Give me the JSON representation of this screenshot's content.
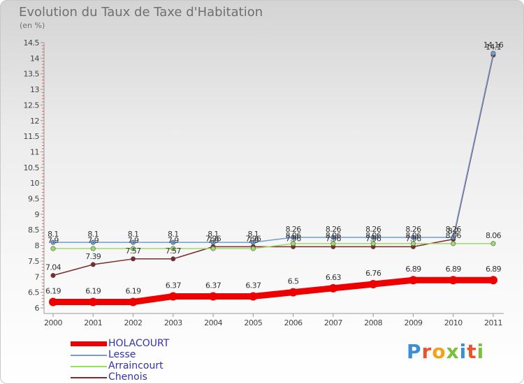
{
  "title": "Evolution du Taux de Taxe d'Habitation",
  "subtitle": "(en %)",
  "logo": {
    "text": "Proxiti",
    "colors": [
      "#3b8fd6",
      "#e8552d",
      "#f2a21a",
      "#7cbf3a",
      "#3b8fd6",
      "#e8552d",
      "#7cbf3a"
    ]
  },
  "chart_data": {
    "type": "line",
    "x": [
      2000,
      2001,
      2002,
      2003,
      2004,
      2005,
      2006,
      2007,
      2008,
      2009,
      2010,
      2011
    ],
    "ylim": [
      6,
      14.5
    ],
    "yticks": [
      "6",
      "6.5",
      "7",
      "7.5",
      "8",
      "8.5",
      "9",
      "9.5",
      "10",
      "10.5",
      "11",
      "11.5",
      "12",
      "12.5",
      "13",
      "13.5",
      "14",
      "14.5"
    ],
    "series": [
      {
        "name": "HOLACOURT",
        "color": "#ee0000",
        "values": [
          6.19,
          6.19,
          6.19,
          6.37,
          6.37,
          6.37,
          6.5,
          6.63,
          6.76,
          6.89,
          6.89,
          6.89
        ],
        "labels": [
          "6.19",
          "6.19",
          "6.19",
          "6.37",
          "6.37",
          "6.37",
          "6.5",
          "6.63",
          "6.76",
          "6.89",
          "6.89",
          "6.89"
        ]
      },
      {
        "name": "Lesse",
        "color": "#6f9ed4",
        "values": [
          8.1,
          8.1,
          8.1,
          8.1,
          8.1,
          8.1,
          8.26,
          8.26,
          8.26,
          8.26,
          8.26,
          14.16
        ],
        "labels": [
          "8.1",
          "8.1",
          "8.1",
          "8.1",
          "8.1",
          "8.1",
          "8.26",
          "8.26",
          "8.26",
          "8.26",
          "8.26",
          "14.16"
        ]
      },
      {
        "name": "Arraincourt",
        "color": "#99dd66",
        "values": [
          7.9,
          7.9,
          7.9,
          7.9,
          7.9,
          7.9,
          8.06,
          8.06,
          8.06,
          8.06,
          8.06,
          8.06
        ],
        "labels": [
          "7.9",
          "7.9",
          "7.9",
          "7.9",
          "7.9",
          "7.9",
          "8.06",
          "8.06",
          "8.06",
          "8.06",
          "8.06",
          "8.06"
        ]
      },
      {
        "name": "Chenois",
        "color": "#7a2a2a",
        "values": [
          7.04,
          7.39,
          7.57,
          7.57,
          7.96,
          7.96,
          7.96,
          7.96,
          7.96,
          7.96,
          8.2,
          14.1
        ],
        "labels": [
          "7.04",
          "7.39",
          "7.57",
          "7.57",
          "7.96",
          "7.96",
          "7.96",
          "7.96",
          "7.96",
          "7.96",
          "8.2",
          "14.1"
        ]
      }
    ]
  }
}
